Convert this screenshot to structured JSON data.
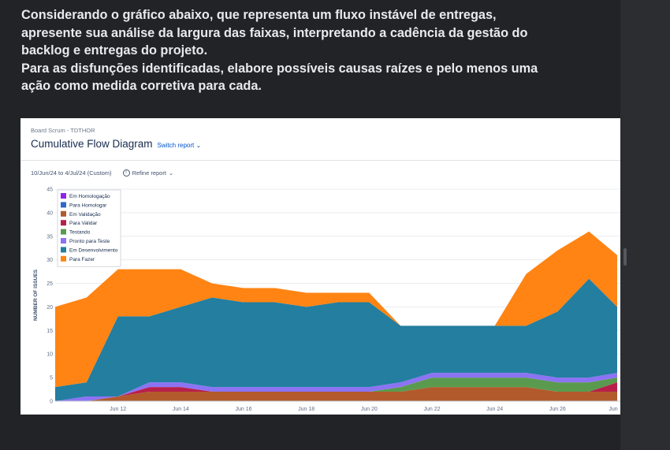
{
  "question": {
    "lines": [
      "Considerando o gráfico abaixo, que representa um fluxo instável de entregas,",
      "apresente sua análise da largura das faixas, interpretando a cadência da gestão do",
      "backlog e entregas do projeto.",
      "Para as disfunções identificadas, elabore possíveis causas raízes e pelo menos uma",
      "ação como medida corretiva para cada."
    ]
  },
  "report": {
    "breadcrumb": "Board Scrum - TDTHOR",
    "title": "Cumulative Flow Diagram",
    "switch_label": "Switch report",
    "date_range": "10/Jun/24 to 4/Jul/24 (Custom)",
    "refine_label": "Refine report",
    "chevron": "⌄"
  },
  "chart_data": {
    "type": "area",
    "stacked": true,
    "ylabel": "NUMBER OF ISSUES",
    "ylim": [
      0,
      45
    ],
    "yticks": [
      0,
      5,
      10,
      15,
      20,
      25,
      30,
      35,
      40,
      45
    ],
    "xticks": [
      "Jun 12",
      "Jun 14",
      "Jun 16",
      "Jun 18",
      "Jun 20",
      "Jun 22",
      "Jun 24",
      "Jun 26",
      "Jun"
    ],
    "legend_position": "top-left",
    "x": [
      "Jun 10",
      "Jun 11",
      "Jun 12",
      "Jun 13",
      "Jun 14",
      "Jun 15",
      "Jun 16",
      "Jun 17",
      "Jun 18",
      "Jun 19",
      "Jun 20",
      "Jun 21",
      "Jun 22",
      "Jun 23",
      "Jun 24",
      "Jun 25",
      "Jun 26",
      "Jun 27",
      "Jun 28"
    ],
    "series": [
      {
        "name": "Em Homologação",
        "color": "#8f23e8",
        "values": [
          0,
          0,
          0,
          0,
          0,
          0,
          0,
          0,
          0,
          0,
          0,
          0,
          0,
          0,
          0,
          0,
          0,
          0,
          0
        ]
      },
      {
        "name": "Para Homologar",
        "color": "#2f68c9",
        "values": [
          0,
          0,
          0,
          0,
          0,
          0,
          0,
          0,
          0,
          0,
          0,
          0,
          0,
          0,
          0,
          0,
          0,
          0,
          0
        ]
      },
      {
        "name": "Em Validação",
        "color": "#b25a2c",
        "values": [
          0,
          0,
          1,
          2,
          2,
          2,
          2,
          2,
          2,
          2,
          2,
          2,
          3,
          3,
          3,
          3,
          2,
          2,
          2
        ]
      },
      {
        "name": "Para Validar",
        "color": "#b8204a",
        "values": [
          0,
          0,
          0,
          1,
          1,
          0,
          0,
          0,
          0,
          0,
          0,
          0,
          0,
          0,
          0,
          0,
          0,
          0,
          2
        ]
      },
      {
        "name": "Testando",
        "color": "#5a9a4f",
        "values": [
          0,
          0,
          0,
          0,
          0,
          0,
          0,
          0,
          0,
          0,
          0,
          1,
          2,
          2,
          2,
          2,
          2,
          2,
          1
        ]
      },
      {
        "name": "Pronto para Teste",
        "color": "#8c73f3",
        "values": [
          0,
          1,
          0,
          1,
          1,
          1,
          1,
          1,
          1,
          1,
          1,
          1,
          1,
          1,
          1,
          1,
          1,
          1,
          1
        ]
      },
      {
        "name": "Em Desenvolvimento",
        "color": "#237ea0",
        "values": [
          3,
          3,
          17,
          14,
          16,
          19,
          18,
          18,
          17,
          18,
          18,
          12,
          10,
          10,
          10,
          10,
          14,
          21,
          14
        ]
      },
      {
        "name": "Para Fazer",
        "color": "#ff8413",
        "values": [
          17,
          18,
          10,
          10,
          8,
          3,
          3,
          3,
          3,
          2,
          2,
          0,
          0,
          0,
          0,
          11,
          13,
          10,
          11
        ]
      }
    ]
  }
}
